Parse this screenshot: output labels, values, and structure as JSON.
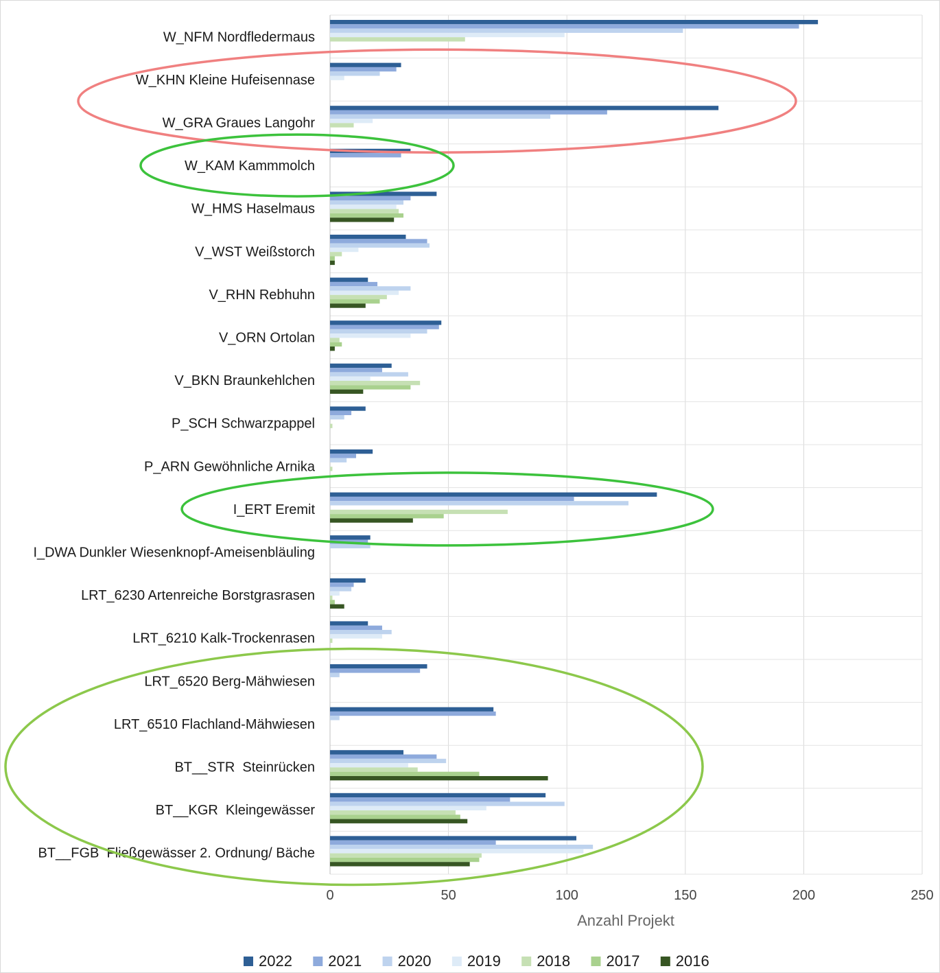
{
  "chart_data": {
    "type": "bar",
    "orientation": "horizontal",
    "xlabel": "Anzahl Projekt",
    "xlim": [
      0,
      250
    ],
    "xticks": [
      0,
      50,
      100,
      150,
      200,
      250
    ],
    "grid": true,
    "legend_position": "bottom",
    "categories": [
      "W_NFM Nordfledermaus",
      "W_KHN Kleine Hufeisennase",
      "W_GRA Graues Langohr",
      "W_KAM Kammmolch",
      "W_HMS Haselmaus",
      "V_WST Weißstorch",
      "V_RHN Rebhuhn",
      "V_ORN Ortolan",
      "V_BKN Braunkehlchen",
      "P_SCH Schwarzpappel",
      "P_ARN Gewöhnliche Arnika",
      "I_ERT Eremit",
      "I_DWA Dunkler Wiesenknopf-Ameisenbläuling",
      "LRT_6230 Artenreiche Borstgrasrasen",
      "LRT_6210 Kalk-Trockenrasen",
      "LRT_6520 Berg-Mähwiesen",
      "LRT_6510 Flachland-Mähwiesen",
      "BT__STR  Steinrücken",
      "BT__KGR  Kleingewässer",
      "BT__FGB  Fließgewässer 2. Ordnung/ Bäche"
    ],
    "series": [
      {
        "name": "2022",
        "color": "#2e5f95",
        "values": [
          206,
          30,
          164,
          34,
          45,
          32,
          16,
          47,
          26,
          15,
          18,
          138,
          17,
          15,
          16,
          41,
          69,
          31,
          91,
          104
        ]
      },
      {
        "name": "2021",
        "color": "#8eaadc",
        "values": [
          198,
          28,
          117,
          30,
          34,
          41,
          20,
          46,
          22,
          9,
          11,
          103,
          16,
          10,
          22,
          38,
          70,
          45,
          76,
          70
        ]
      },
      {
        "name": "2020",
        "color": "#bed3ee",
        "values": [
          149,
          21,
          93,
          0,
          31,
          42,
          34,
          41,
          33,
          6,
          7,
          126,
          17,
          9,
          26,
          4,
          4,
          49,
          99,
          111
        ]
      },
      {
        "name": "2019",
        "color": "#deebf7",
        "values": [
          99,
          6,
          18,
          0,
          28,
          12,
          29,
          34,
          17,
          0,
          0,
          0,
          0,
          4,
          22,
          0,
          0,
          33,
          66,
          107
        ]
      },
      {
        "name": "2018",
        "color": "#c6e0b4",
        "values": [
          57,
          0,
          10,
          0,
          29,
          5,
          24,
          4,
          38,
          1,
          1,
          75,
          0,
          1,
          1,
          0,
          0,
          37,
          53,
          64
        ]
      },
      {
        "name": "2017",
        "color": "#a9d18e",
        "values": [
          0,
          0,
          0,
          0,
          31,
          2,
          21,
          5,
          34,
          0,
          0,
          48,
          0,
          2,
          0,
          0,
          0,
          63,
          55,
          63
        ]
      },
      {
        "name": "2016",
        "color": "#375623",
        "values": [
          0,
          0,
          0,
          0,
          27,
          2,
          15,
          2,
          14,
          0,
          0,
          35,
          0,
          6,
          0,
          0,
          0,
          92,
          58,
          59
        ]
      }
    ],
    "annotations": [
      {
        "shape": "ellipse",
        "color": "#f08080",
        "groups": [
          "W_KHN Kleine Hufeisennase",
          "W_GRA Graues Langohr"
        ]
      },
      {
        "shape": "ellipse",
        "color": "#3cc23c",
        "groups": [
          "W_KAM Kammmolch"
        ]
      },
      {
        "shape": "ellipse",
        "color": "#3cc23c",
        "groups": [
          "I_ERT Eremit"
        ]
      },
      {
        "shape": "ellipse",
        "color": "#8cc84b",
        "groups": [
          "LRT_6520 Berg-Mähwiesen",
          "LRT_6510 Flachland-Mähwiesen",
          "BT__STR  Steinrücken",
          "BT__KGR  Kleingewässer",
          "BT__FGB  Fließgewässer 2. Ordnung/ Bäche"
        ]
      }
    ]
  }
}
